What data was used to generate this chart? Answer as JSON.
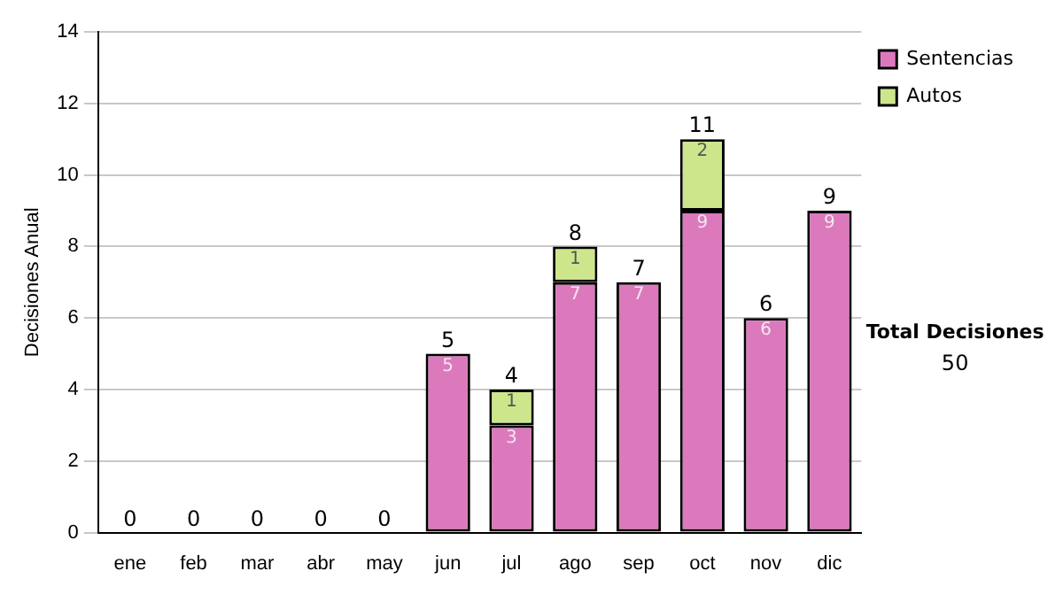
{
  "chart_data": {
    "type": "bar",
    "ylabel": "Decisiones Anual",
    "categories": [
      "ene",
      "feb",
      "mar",
      "abr",
      "may",
      "jun",
      "jul",
      "ago",
      "sep",
      "oct",
      "nov",
      "dic"
    ],
    "stacked": true,
    "series": [
      {
        "name": "Sentencias",
        "color": "#dc79bd",
        "values": [
          0,
          0,
          0,
          0,
          0,
          5,
          3,
          7,
          7,
          9,
          6,
          9
        ],
        "value_labels": [
          null,
          null,
          null,
          null,
          null,
          "5",
          "3",
          "7",
          "7",
          "9",
          "6",
          "9"
        ]
      },
      {
        "name": "Autos",
        "color": "#cde68c",
        "values": [
          0,
          0,
          0,
          0,
          0,
          0,
          1,
          1,
          0,
          2,
          0,
          0
        ],
        "value_labels": [
          null,
          null,
          null,
          null,
          null,
          null,
          "1",
          "1",
          null,
          "2",
          null,
          null
        ]
      }
    ],
    "totals": [
      "0",
      "0",
      "0",
      "0",
      "0",
      "5",
      "4",
      "8",
      "7",
      "11",
      "6",
      "9"
    ],
    "ylim": [
      0,
      14
    ],
    "yticks": [
      0,
      2,
      4,
      6,
      8,
      10,
      12,
      14
    ],
    "grid": "y",
    "legend": "right",
    "annotations": [
      "Total Decisiones",
      "50"
    ]
  }
}
